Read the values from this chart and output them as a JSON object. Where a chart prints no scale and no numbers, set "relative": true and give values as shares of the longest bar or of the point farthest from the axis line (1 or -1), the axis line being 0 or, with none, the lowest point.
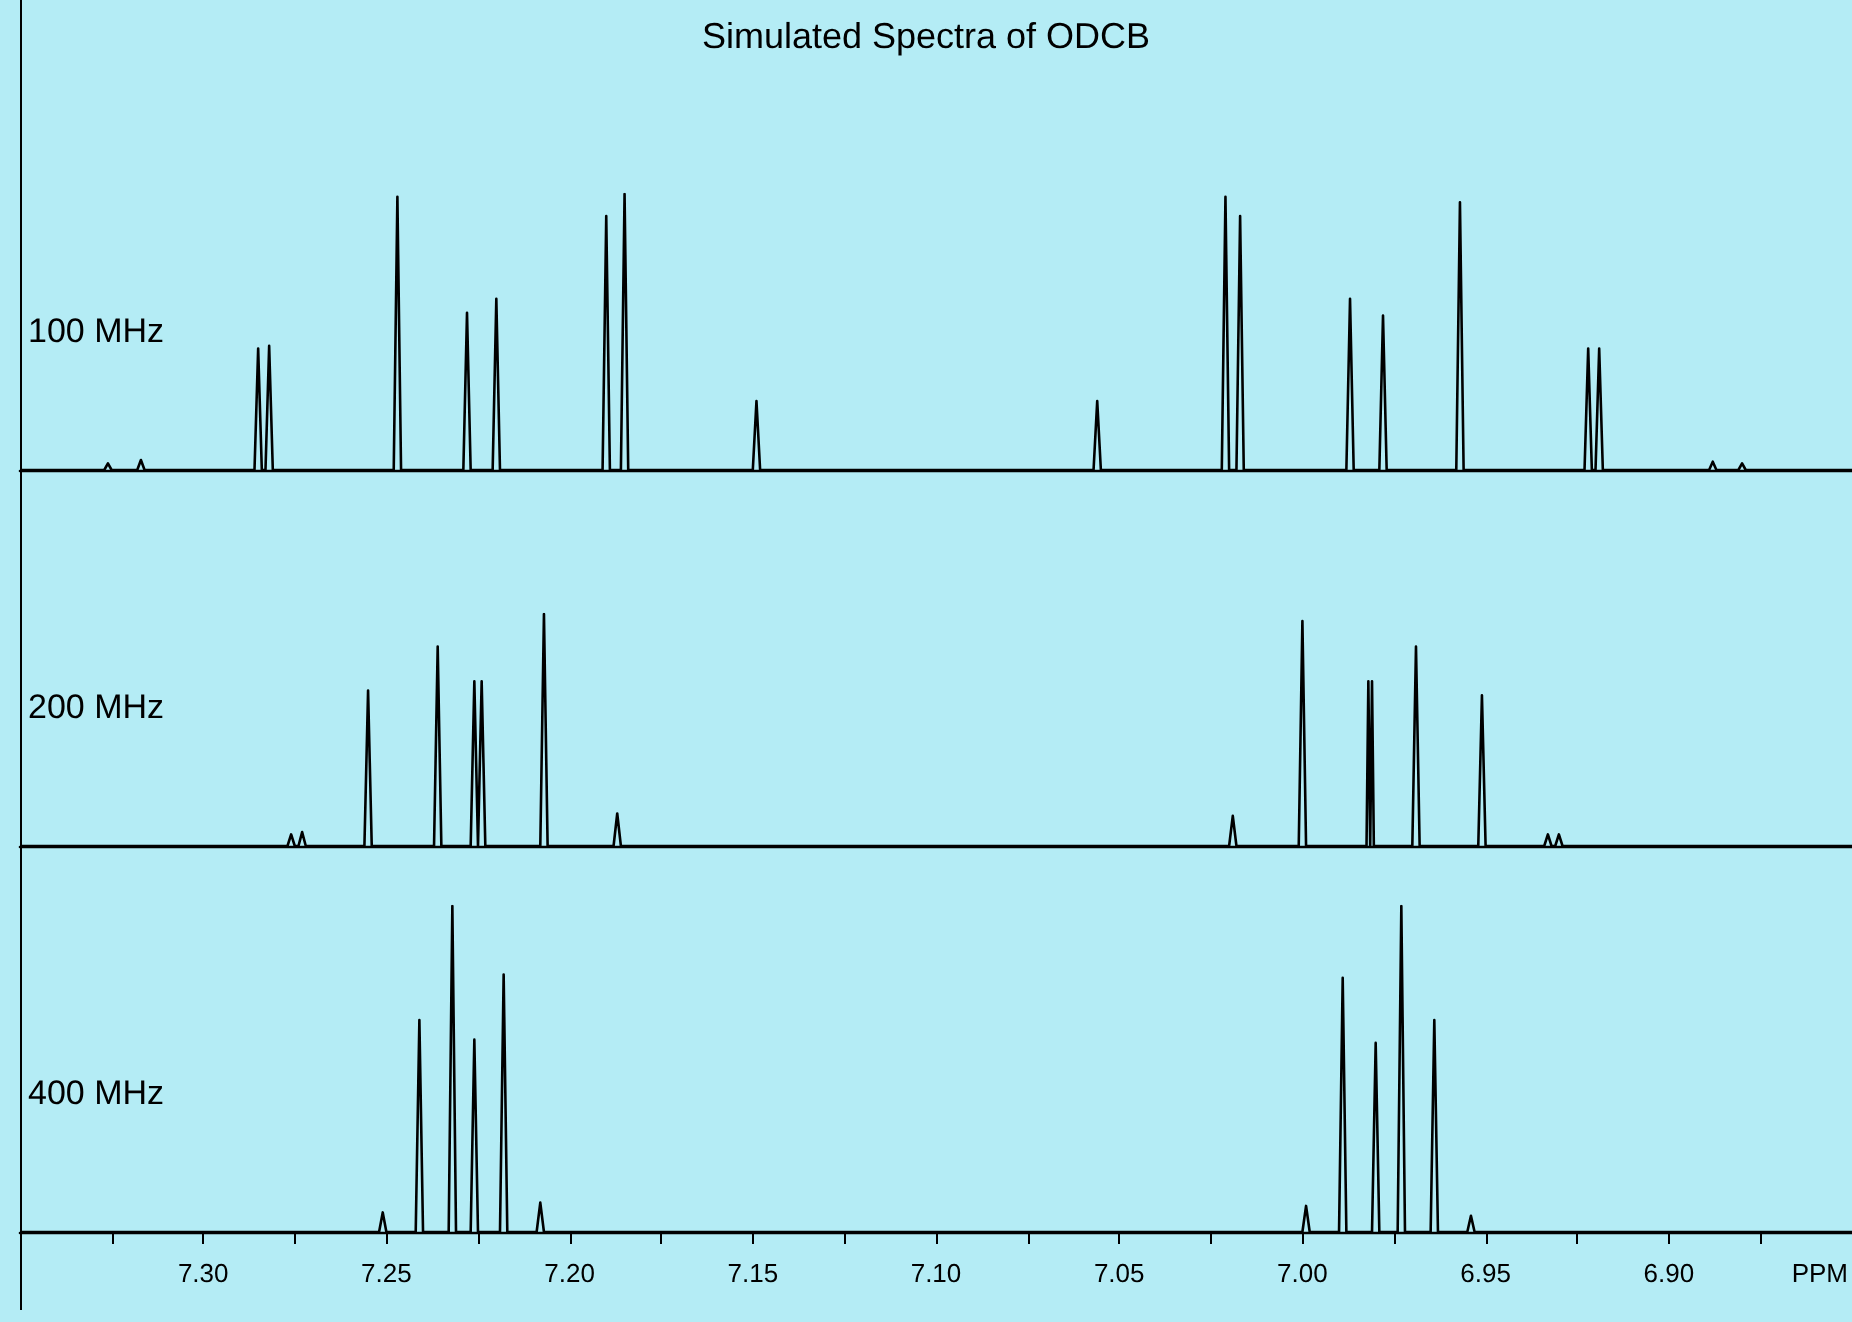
{
  "chart_data": [
    {
      "type": "line",
      "title": "Simulated Spectra of ODCB",
      "relative": true,
      "tick_labels": false,
      "xlim": [
        7.35,
        6.85
      ],
      "series": [
        {
          "name": "100 MHz",
          "color": "#000000",
          "x": [
            7.35,
            7.327,
            7.326,
            7.325,
            7.318,
            7.317,
            7.316,
            7.286,
            7.285,
            7.284,
            7.283,
            7.282,
            7.281,
            7.248,
            7.247,
            7.246,
            7.229,
            7.228,
            7.227,
            7.221,
            7.22,
            7.219,
            7.191,
            7.19,
            7.189,
            7.186,
            7.185,
            7.184,
            7.15,
            7.149,
            7.148,
            7.057,
            7.056,
            7.055,
            7.022,
            7.021,
            7.02,
            7.018,
            7.017,
            7.016,
            6.988,
            6.987,
            6.986,
            6.979,
            6.978,
            6.977,
            6.958,
            6.957,
            6.956,
            6.923,
            6.922,
            6.921,
            6.92,
            6.919,
            6.918,
            6.889,
            6.888,
            6.887,
            6.881,
            6.88,
            6.879,
            6.85
          ],
          "values": [
            0,
            0,
            0.024,
            0,
            0,
            0.036,
            0,
            0,
            0.44,
            0,
            0,
            0.45,
            0,
            0,
            0.99,
            0,
            0,
            0.57,
            0,
            0,
            0.62,
            0,
            0,
            0.92,
            0,
            0,
            1,
            0,
            0,
            0.25,
            0,
            0,
            0.25,
            0,
            0,
            0.99,
            0,
            0,
            0.92,
            0,
            0,
            0.62,
            0,
            0,
            0.56,
            0,
            0,
            0.97,
            0,
            0,
            0.44,
            0,
            0,
            0.44,
            0,
            0,
            0.03,
            0,
            0,
            0.024,
            0,
            0
          ]
        }
      ]
    },
    {
      "type": "line",
      "relative": true,
      "tick_labels": false,
      "xlim": [
        7.35,
        6.85
      ],
      "series": [
        {
          "name": "200 MHz",
          "color": "#000000",
          "x": [
            7.35,
            7.277,
            7.276,
            7.275,
            7.274,
            7.273,
            7.272,
            7.256,
            7.255,
            7.254,
            7.237,
            7.236,
            7.235,
            7.227,
            7.226,
            7.225,
            7.225,
            7.224,
            7.223,
            7.208,
            7.207,
            7.206,
            7.188,
            7.187,
            7.186,
            7.02,
            7.019,
            7.018,
            7.001,
            7,
            6.999,
            6.9825,
            6.982,
            6.9815,
            6.9815,
            6.981,
            6.9805,
            6.97,
            6.969,
            6.968,
            6.952,
            6.951,
            6.95,
            6.934,
            6.933,
            6.932,
            6.931,
            6.93,
            6.929,
            6.85
          ],
          "values": [
            0,
            0,
            0.05,
            0,
            0,
            0.06,
            0,
            0,
            0.67,
            0,
            0,
            0.86,
            0,
            0,
            0.71,
            0,
            0,
            0.71,
            0,
            0,
            1,
            0,
            0,
            0.14,
            0,
            0,
            0.13,
            0,
            0,
            0.97,
            0,
            0,
            0.71,
            0,
            0,
            0.71,
            0,
            0,
            0.86,
            0,
            0,
            0.65,
            0,
            0,
            0.05,
            0,
            0,
            0.05,
            0,
            0
          ]
        }
      ]
    },
    {
      "type": "line",
      "relative": true,
      "tick_labels": "x",
      "xlabel": "PPM",
      "xlim": [
        7.35,
        6.85
      ],
      "xticks": [
        {
          "value": 7.325,
          "label": null
        },
        {
          "value": 7.3,
          "label": "7.30"
        },
        {
          "value": 7.275,
          "label": null
        },
        {
          "value": 7.25,
          "label": "7.25"
        },
        {
          "value": 7.225,
          "label": null
        },
        {
          "value": 7.2,
          "label": "7.20"
        },
        {
          "value": 7.175,
          "label": null
        },
        {
          "value": 7.15,
          "label": "7.15"
        },
        {
          "value": 7.125,
          "label": null
        },
        {
          "value": 7.1,
          "label": "7.10"
        },
        {
          "value": 7.075,
          "label": null
        },
        {
          "value": 7.05,
          "label": "7.05"
        },
        {
          "value": 7.025,
          "label": null
        },
        {
          "value": 7,
          "label": "7.00"
        },
        {
          "value": 6.975,
          "label": null
        },
        {
          "value": 6.95,
          "label": "6.95"
        },
        {
          "value": 6.925,
          "label": null
        },
        {
          "value": 6.9,
          "label": "6.90"
        },
        {
          "value": 6.875,
          "label": null
        }
      ],
      "series": [
        {
          "name": "400 MHz",
          "color": "#000000",
          "x": [
            7.35,
            7.252,
            7.251,
            7.25,
            7.242,
            7.241,
            7.24,
            7.233,
            7.232,
            7.231,
            7.227,
            7.226,
            7.225,
            7.219,
            7.218,
            7.217,
            7.209,
            7.208,
            7.207,
            7,
            6.999,
            6.998,
            6.99,
            6.989,
            6.988,
            6.981,
            6.98,
            6.979,
            6.974,
            6.973,
            6.972,
            6.965,
            6.964,
            6.963,
            6.955,
            6.954,
            6.953,
            6.85
          ],
          "values": [
            0,
            0,
            0.06,
            0,
            0,
            0.65,
            0,
            0,
            1,
            0,
            0,
            0.59,
            0,
            0,
            0.79,
            0,
            0,
            0.09,
            0,
            0,
            0.08,
            0,
            0,
            0.78,
            0,
            0,
            0.58,
            0,
            0,
            1,
            0,
            0,
            0.65,
            0,
            0,
            0.05,
            0,
            0
          ]
        }
      ]
    }
  ]
}
